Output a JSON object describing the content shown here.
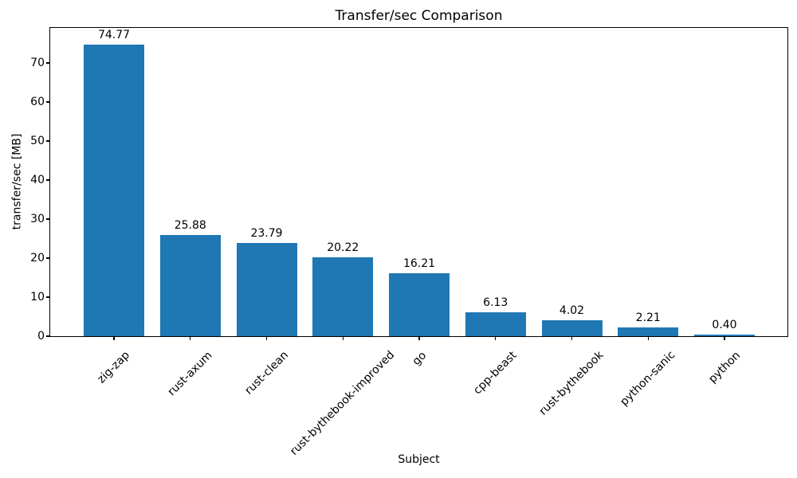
{
  "chart_data": {
    "type": "bar",
    "title": "Transfer/sec Comparison",
    "xlabel": "Subject",
    "ylabel": "transfer/sec [MB]",
    "categories": [
      "zig-zap",
      "rust-axum",
      "rust-clean",
      "rust-bythebook-improved",
      "go",
      "cpp-beast",
      "rust-bythebook",
      "python-sanic",
      "python"
    ],
    "values": [
      74.77,
      25.88,
      23.79,
      20.22,
      16.21,
      6.13,
      4.02,
      2.21,
      0.4
    ],
    "value_labels": [
      "74.77",
      "25.88",
      "23.79",
      "20.22",
      "16.21",
      "6.13",
      "4.02",
      "2.21",
      "0.40"
    ],
    "yticks": [
      0,
      10,
      20,
      30,
      40,
      50,
      60,
      70
    ],
    "ylim": [
      0,
      79
    ],
    "x_tick_rotation_deg": 45,
    "grid": false,
    "legend": "none",
    "bar_color": "#1f77b4",
    "text_color": "#000000",
    "background_color": "#ffffff"
  }
}
